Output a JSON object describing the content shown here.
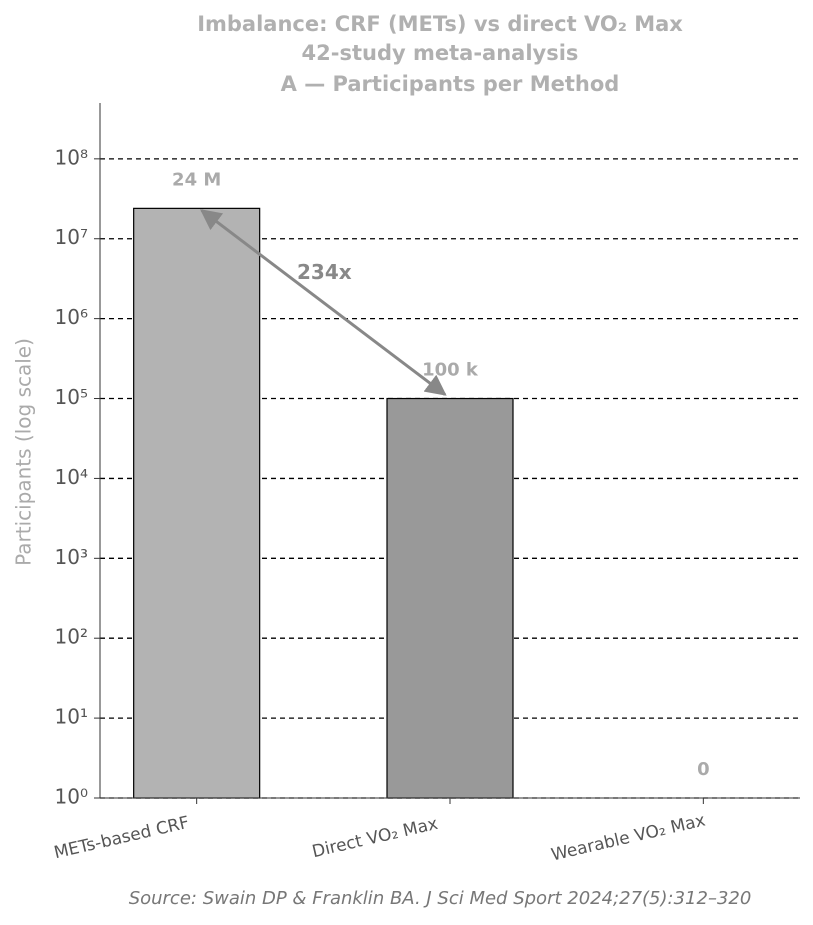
{
  "chart_data": {
    "type": "bar",
    "title": "Imbalance: CRF (METs) vs direct VO₂ Max",
    "subtitle": "42-study meta-analysis",
    "panel_title": "A — Participants per Method",
    "y_label": "Participants (log scale)",
    "categories": [
      "METs-based CRF",
      "Direct VO₂ Max",
      "Wearable VO₂ Max"
    ],
    "values": [
      24000000,
      100000,
      0
    ],
    "value_labels": [
      "24 M",
      "100 k",
      "0"
    ],
    "colors": [
      "#b3b3b3",
      "#999999",
      "#dddddd"
    ],
    "log_scale": true,
    "ylim": [
      1,
      500000000
    ],
    "yticks": [
      {
        "value": 1,
        "label": "10⁰"
      },
      {
        "value": 10,
        "label": "10¹"
      },
      {
        "value": 100,
        "label": "10²"
      },
      {
        "value": 1000,
        "label": "10³"
      },
      {
        "value": 10000,
        "label": "10⁴"
      },
      {
        "value": 100000,
        "label": "10⁵"
      },
      {
        "value": 1000000,
        "label": "10⁶"
      },
      {
        "value": 10000000,
        "label": "10⁷"
      },
      {
        "value": 100000000,
        "label": "10⁸"
      }
    ],
    "grid": true,
    "annotation": {
      "text": "234x"
    },
    "source": "Source: Swain DP & Franklin BA. J Sci Med Sport 2024;27(5):312–320"
  }
}
